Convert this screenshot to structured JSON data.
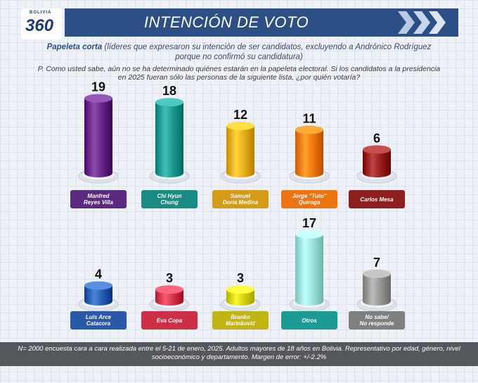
{
  "logo": {
    "top_text": "BOLIVIA",
    "main_text": "360"
  },
  "title": "INTENCIÓN DE VOTO",
  "subtitle": {
    "bold": "Papeleta corta",
    "rest": " (líderes que expresaron su intención de ser candidatos, excluyendo a Andrónico Rodríguez porque no confirmó su candidatura)"
  },
  "question": "P. Como usted sabe, aún no se ha determinado quiénes estarán en la papeleta electoral. Si los candidatos a la presidencia en 2025 fueran sólo las personas de la siguiente lista, ¿por quién votaría?",
  "footer": "N= 2000 encuesta cara a cara realizada entre el 5-21 de enero, 2025. Adultos mayores de 18 años en Bolivia. Representativo por edad, género, nivel socioeconómico y departamento. Margen de error: +/-2.2%",
  "colors": {
    "header": "#2c4f86",
    "footer": "#54575c"
  },
  "chart_data": {
    "type": "bar",
    "unit": "%",
    "categories": [
      "Manfred\nReyes Villa",
      "Chi Hyun\nChung",
      "Samuel\nDoria Medina",
      "Jorge \"Tuto\"\nQuiroga",
      "Carlos Mesa",
      "Luis Arce\nCatacora",
      "Eva Copa",
      "Branko\nMarinković",
      "Otros",
      "No sabe/\nNo responde"
    ],
    "values": [
      19,
      18,
      12,
      11,
      6,
      4,
      3,
      3,
      17,
      7
    ],
    "colors": [
      "#6a2a8c",
      "#1f9c93",
      "#e9b21a",
      "#f07d0c",
      "#9c2222",
      "#2b62b6",
      "#d6384f",
      "#d7d411",
      "#9ee5dc",
      "#9a9a9a"
    ],
    "label_colors": [
      "#5a2a7e",
      "#1a8b84",
      "#d59b16",
      "#ee7412",
      "#8e1f1f",
      "#2c58a8",
      "#cf2f46",
      "#c2b512",
      "#1e9a95",
      "#7f7f7f"
    ]
  }
}
